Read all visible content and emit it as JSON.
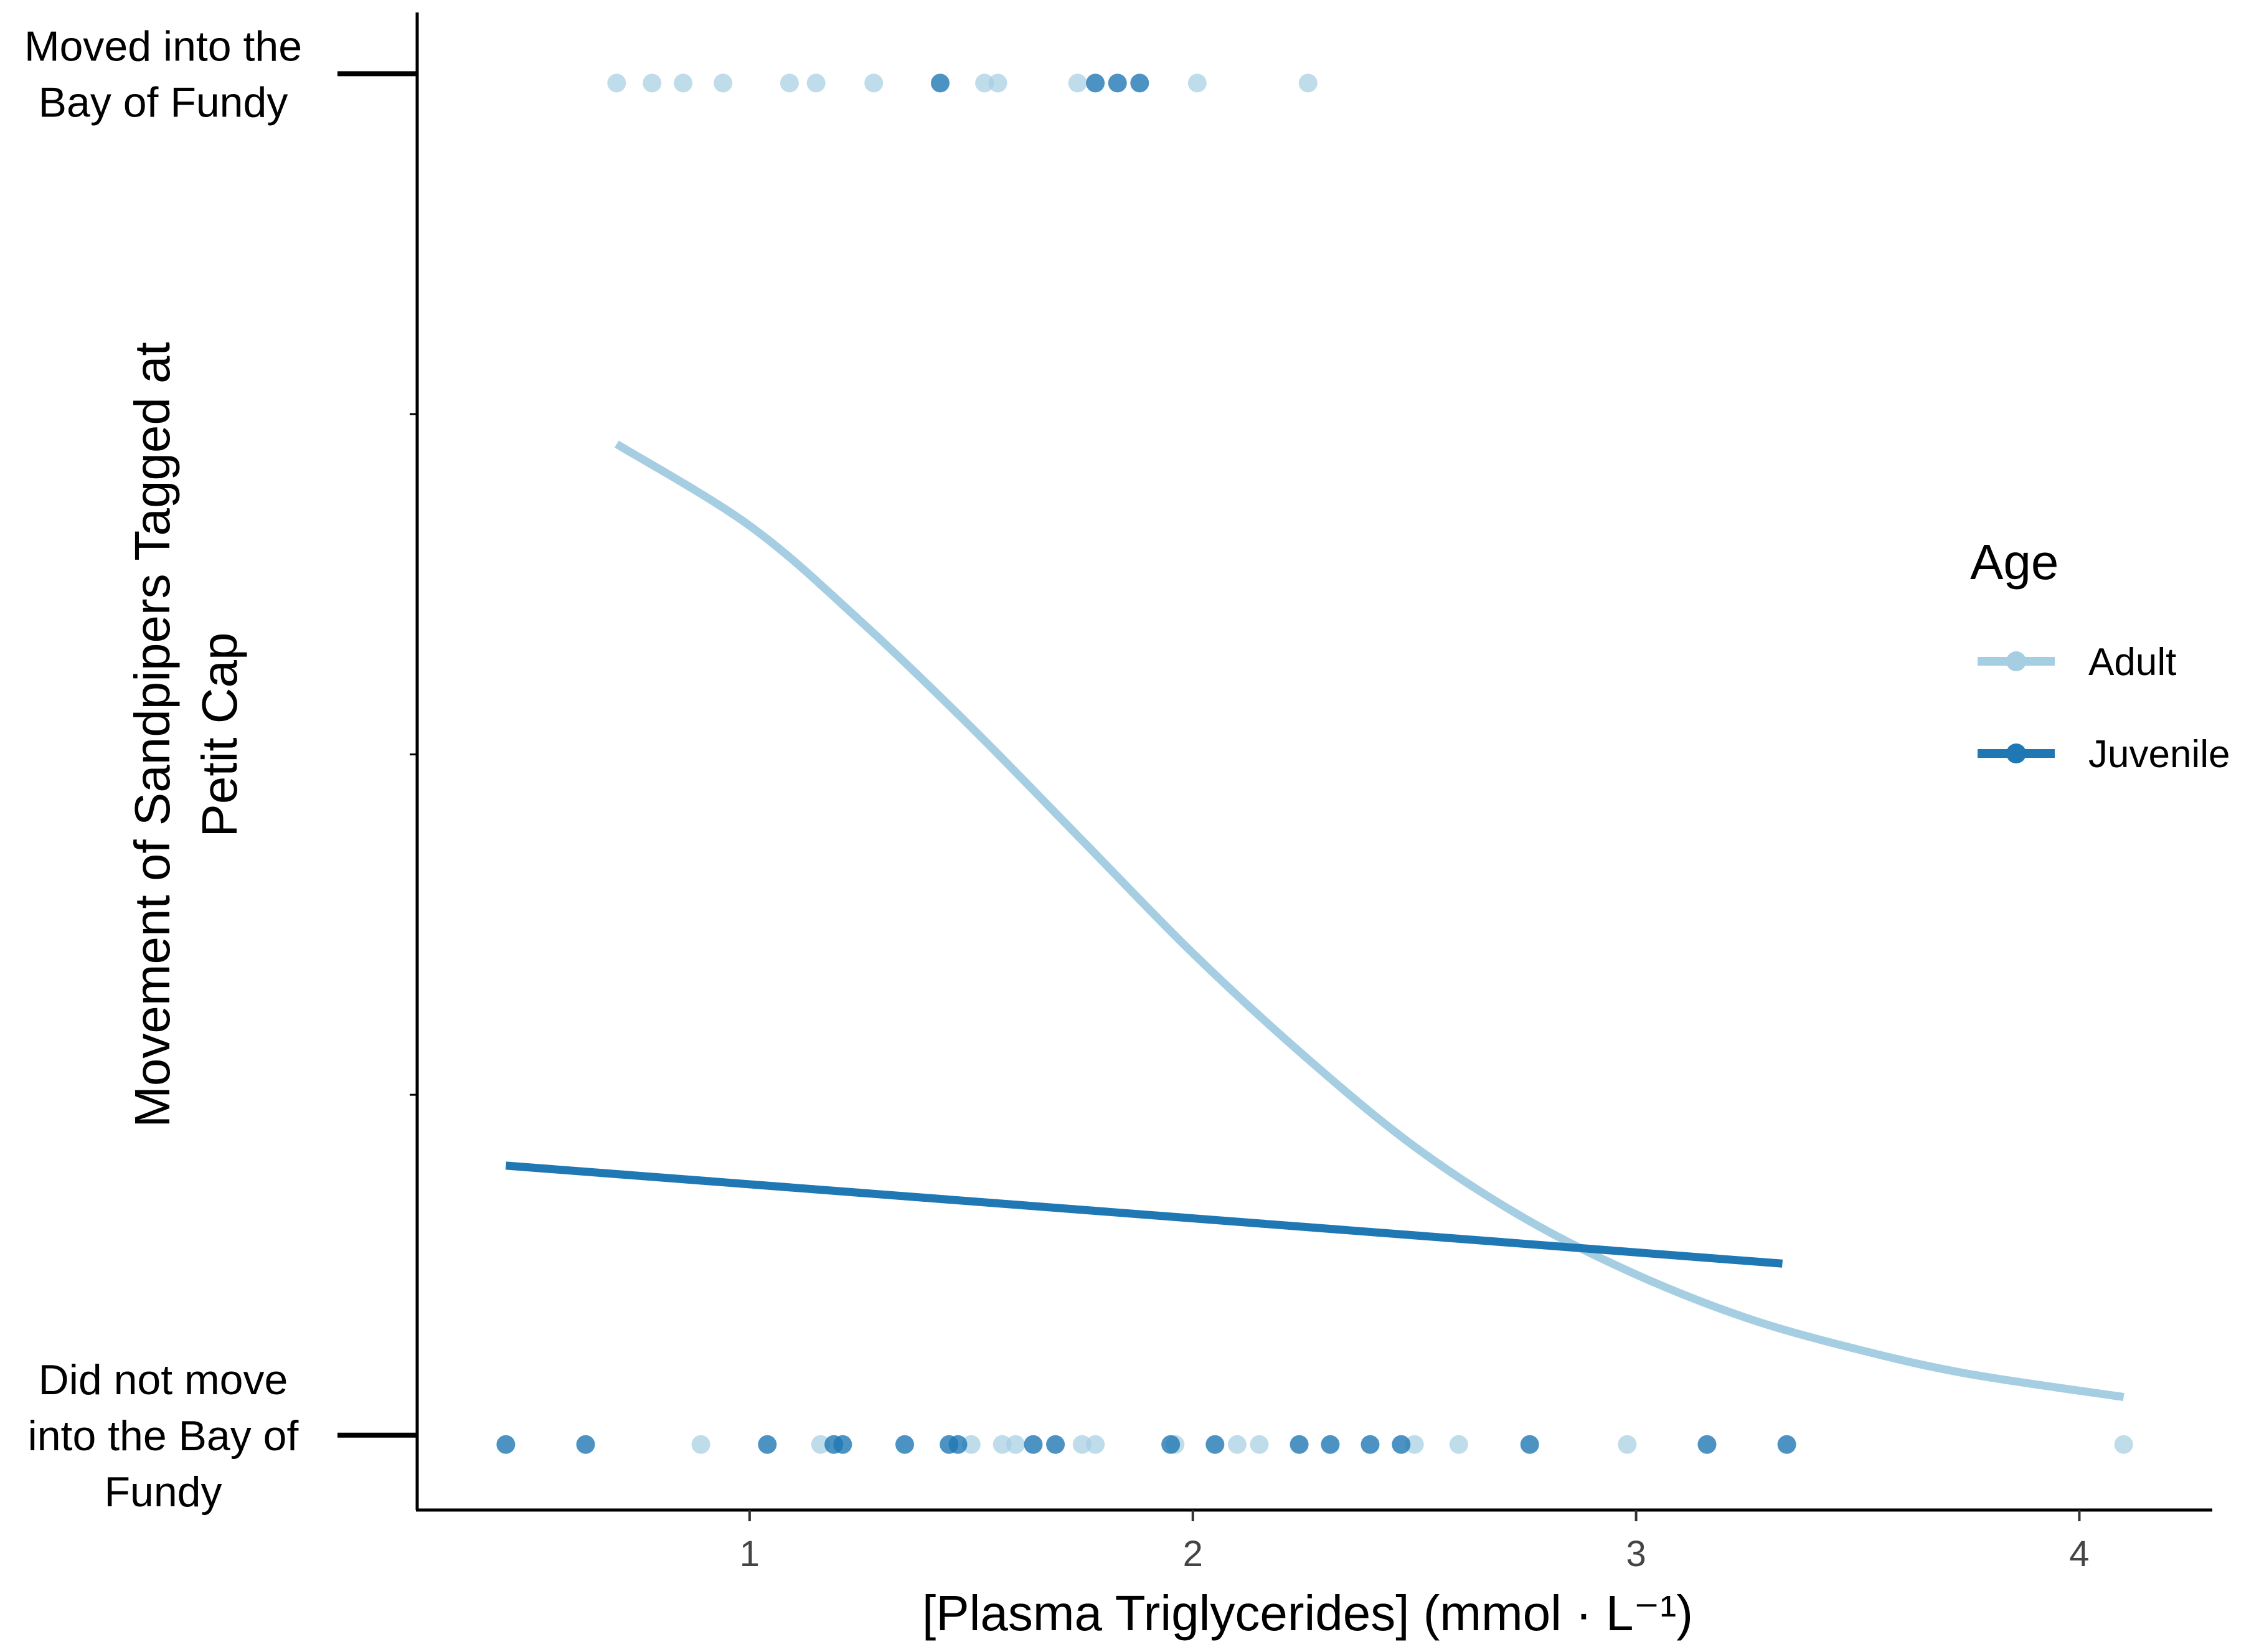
{
  "chart_data": {
    "type": "scatter",
    "xlabel": "[Plasma Triglycerides] (mmol · L⁻¹)",
    "ylabel_lines": [
      "Movement of Sandpipers Tagged at",
      "Petit Cap"
    ],
    "xlim": [
      0.25,
      4.3
    ],
    "ylim": [
      -0.055,
      1.045
    ],
    "x_ticks": [
      1,
      2,
      3,
      4
    ],
    "y_ticks": [
      {
        "value": 0,
        "label_lines": [
          "Did not move",
          "into the Bay of",
          "Fundy"
        ]
      },
      {
        "value": 0.25,
        "label_lines": []
      },
      {
        "value": 0.5,
        "label_lines": []
      },
      {
        "value": 0.75,
        "label_lines": []
      },
      {
        "value": 1,
        "label_lines": [
          "Moved into the",
          "Bay of Fundy"
        ]
      }
    ],
    "grid": false,
    "legend": {
      "title": "Age",
      "position": "right"
    },
    "series": [
      {
        "name": "Adult",
        "color": "#a6cee3",
        "points": [
          {
            "x": 0.7,
            "y": 1
          },
          {
            "x": 0.78,
            "y": 1
          },
          {
            "x": 0.85,
            "y": 1
          },
          {
            "x": 0.94,
            "y": 1
          },
          {
            "x": 1.09,
            "y": 1
          },
          {
            "x": 1.15,
            "y": 1
          },
          {
            "x": 1.28,
            "y": 1
          },
          {
            "x": 1.53,
            "y": 1
          },
          {
            "x": 1.56,
            "y": 1
          },
          {
            "x": 1.74,
            "y": 1
          },
          {
            "x": 2.01,
            "y": 1
          },
          {
            "x": 2.26,
            "y": 1
          },
          {
            "x": 0.89,
            "y": 0
          },
          {
            "x": 1.16,
            "y": 0
          },
          {
            "x": 1.5,
            "y": 0
          },
          {
            "x": 1.57,
            "y": 0
          },
          {
            "x": 1.6,
            "y": 0
          },
          {
            "x": 1.75,
            "y": 0
          },
          {
            "x": 1.78,
            "y": 0
          },
          {
            "x": 1.96,
            "y": 0
          },
          {
            "x": 2.1,
            "y": 0
          },
          {
            "x": 2.15,
            "y": 0
          },
          {
            "x": 2.5,
            "y": 0
          },
          {
            "x": 2.6,
            "y": 0
          },
          {
            "x": 2.98,
            "y": 0
          },
          {
            "x": 4.1,
            "y": 0
          }
        ],
        "fit": [
          {
            "x": 0.7,
            "y": 0.728
          },
          {
            "x": 1.0,
            "y": 0.668
          },
          {
            "x": 1.25,
            "y": 0.598
          },
          {
            "x": 1.5,
            "y": 0.52
          },
          {
            "x": 1.75,
            "y": 0.437
          },
          {
            "x": 2.0,
            "y": 0.354
          },
          {
            "x": 2.25,
            "y": 0.279
          },
          {
            "x": 2.5,
            "y": 0.212
          },
          {
            "x": 2.75,
            "y": 0.159
          },
          {
            "x": 3.0,
            "y": 0.118
          },
          {
            "x": 3.25,
            "y": 0.086
          },
          {
            "x": 3.5,
            "y": 0.063
          },
          {
            "x": 3.75,
            "y": 0.045
          },
          {
            "x": 4.1,
            "y": 0.028
          }
        ]
      },
      {
        "name": "Juvenile",
        "color": "#1f78b4",
        "points": [
          {
            "x": 1.43,
            "y": 1
          },
          {
            "x": 1.78,
            "y": 1
          },
          {
            "x": 1.83,
            "y": 1
          },
          {
            "x": 1.88,
            "y": 1
          },
          {
            "x": 0.45,
            "y": 0
          },
          {
            "x": 0.63,
            "y": 0
          },
          {
            "x": 1.04,
            "y": 0
          },
          {
            "x": 1.19,
            "y": 0
          },
          {
            "x": 1.21,
            "y": 0
          },
          {
            "x": 1.35,
            "y": 0
          },
          {
            "x": 1.45,
            "y": 0
          },
          {
            "x": 1.47,
            "y": 0
          },
          {
            "x": 1.64,
            "y": 0
          },
          {
            "x": 1.69,
            "y": 0
          },
          {
            "x": 1.95,
            "y": 0
          },
          {
            "x": 2.05,
            "y": 0
          },
          {
            "x": 2.24,
            "y": 0
          },
          {
            "x": 2.31,
            "y": 0
          },
          {
            "x": 2.4,
            "y": 0
          },
          {
            "x": 2.47,
            "y": 0
          },
          {
            "x": 2.76,
            "y": 0
          },
          {
            "x": 3.16,
            "y": 0
          },
          {
            "x": 3.34,
            "y": 0
          }
        ],
        "fit": [
          {
            "x": 0.45,
            "y": 0.198
          },
          {
            "x": 3.33,
            "y": 0.126
          }
        ]
      }
    ]
  }
}
